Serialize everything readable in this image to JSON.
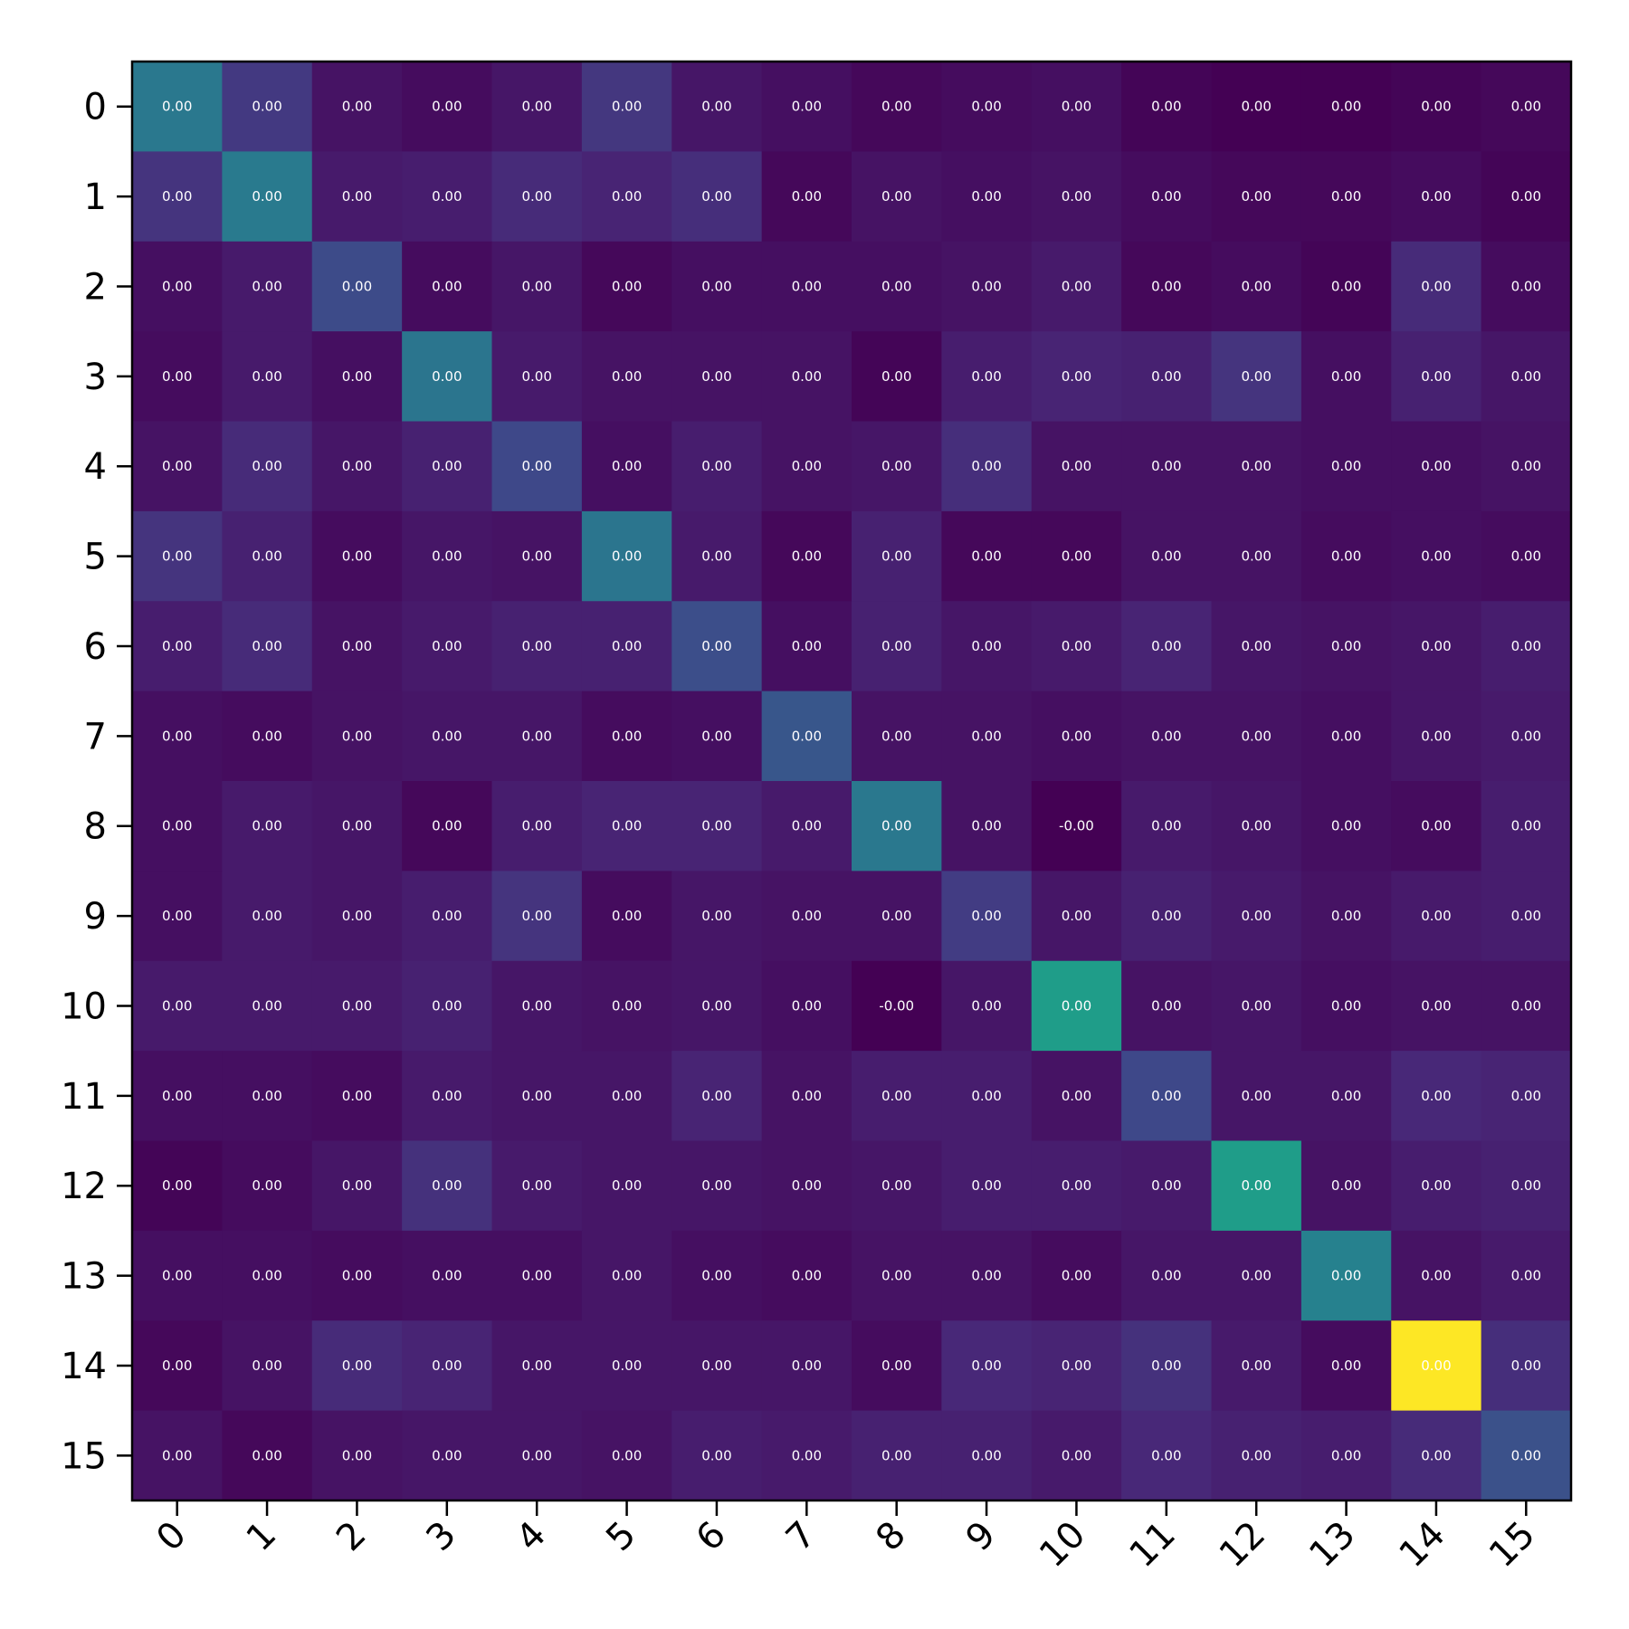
{
  "chart_data": {
    "type": "heatmap",
    "title": "",
    "xlabel": "",
    "ylabel": "",
    "colormap": "viridis",
    "grid": false,
    "legend": "none",
    "x_categories": [
      "0",
      "1",
      "2",
      "3",
      "4",
      "5",
      "6",
      "7",
      "8",
      "9",
      "10",
      "11",
      "12",
      "13",
      "14",
      "15"
    ],
    "y_categories": [
      "0",
      "1",
      "2",
      "3",
      "4",
      "5",
      "6",
      "7",
      "8",
      "9",
      "10",
      "11",
      "12",
      "13",
      "14",
      "15"
    ],
    "intensity": [
      [
        0.4,
        0.17,
        0.05,
        0.03,
        0.06,
        0.16,
        0.06,
        0.04,
        0.02,
        0.03,
        0.04,
        0.01,
        0.0,
        0.0,
        0.01,
        0.02
      ],
      [
        0.15,
        0.41,
        0.07,
        0.08,
        0.12,
        0.1,
        0.13,
        0.02,
        0.05,
        0.04,
        0.05,
        0.03,
        0.02,
        0.02,
        0.03,
        0.01
      ],
      [
        0.04,
        0.07,
        0.23,
        0.03,
        0.06,
        0.02,
        0.04,
        0.04,
        0.04,
        0.05,
        0.07,
        0.02,
        0.03,
        0.01,
        0.12,
        0.03
      ],
      [
        0.03,
        0.07,
        0.04,
        0.39,
        0.07,
        0.05,
        0.05,
        0.05,
        0.01,
        0.08,
        0.1,
        0.09,
        0.15,
        0.04,
        0.09,
        0.06
      ],
      [
        0.05,
        0.12,
        0.06,
        0.09,
        0.22,
        0.04,
        0.08,
        0.05,
        0.06,
        0.13,
        0.05,
        0.05,
        0.05,
        0.04,
        0.04,
        0.05
      ],
      [
        0.15,
        0.09,
        0.03,
        0.06,
        0.05,
        0.39,
        0.07,
        0.02,
        0.09,
        0.02,
        0.02,
        0.05,
        0.05,
        0.03,
        0.04,
        0.03
      ],
      [
        0.08,
        0.12,
        0.05,
        0.07,
        0.09,
        0.09,
        0.24,
        0.04,
        0.09,
        0.06,
        0.07,
        0.1,
        0.06,
        0.05,
        0.06,
        0.08
      ],
      [
        0.04,
        0.03,
        0.05,
        0.06,
        0.06,
        0.03,
        0.04,
        0.27,
        0.05,
        0.05,
        0.04,
        0.05,
        0.05,
        0.04,
        0.06,
        0.07
      ],
      [
        0.04,
        0.07,
        0.06,
        0.02,
        0.08,
        0.1,
        0.1,
        0.07,
        0.4,
        0.05,
        0.0,
        0.07,
        0.06,
        0.04,
        0.03,
        0.08
      ],
      [
        0.04,
        0.07,
        0.06,
        0.08,
        0.15,
        0.03,
        0.06,
        0.05,
        0.05,
        0.18,
        0.06,
        0.09,
        0.07,
        0.05,
        0.07,
        0.08
      ],
      [
        0.07,
        0.07,
        0.07,
        0.09,
        0.06,
        0.05,
        0.06,
        0.04,
        0.0,
        0.06,
        0.55,
        0.05,
        0.06,
        0.04,
        0.05,
        0.05
      ],
      [
        0.04,
        0.04,
        0.03,
        0.07,
        0.06,
        0.06,
        0.1,
        0.05,
        0.08,
        0.08,
        0.05,
        0.22,
        0.06,
        0.06,
        0.11,
        0.1
      ],
      [
        0.01,
        0.03,
        0.06,
        0.14,
        0.07,
        0.06,
        0.06,
        0.05,
        0.06,
        0.08,
        0.08,
        0.07,
        0.55,
        0.05,
        0.08,
        0.09
      ],
      [
        0.04,
        0.04,
        0.03,
        0.04,
        0.04,
        0.06,
        0.04,
        0.03,
        0.05,
        0.05,
        0.03,
        0.06,
        0.06,
        0.44,
        0.05,
        0.07
      ],
      [
        0.02,
        0.05,
        0.12,
        0.1,
        0.06,
        0.06,
        0.06,
        0.06,
        0.03,
        0.11,
        0.1,
        0.14,
        0.07,
        0.03,
        1.0,
        0.13
      ],
      [
        0.05,
        0.02,
        0.05,
        0.06,
        0.06,
        0.05,
        0.08,
        0.07,
        0.09,
        0.09,
        0.07,
        0.11,
        0.09,
        0.08,
        0.12,
        0.25
      ]
    ],
    "cell_labels": [
      [
        "0.00",
        "0.00",
        "0.00",
        "0.00",
        "0.00",
        "0.00",
        "0.00",
        "0.00",
        "0.00",
        "0.00",
        "0.00",
        "0.00",
        "0.00",
        "0.00",
        "0.00",
        "0.00"
      ],
      [
        "0.00",
        "0.00",
        "0.00",
        "0.00",
        "0.00",
        "0.00",
        "0.00",
        "0.00",
        "0.00",
        "0.00",
        "0.00",
        "0.00",
        "0.00",
        "0.00",
        "0.00",
        "0.00"
      ],
      [
        "0.00",
        "0.00",
        "0.00",
        "0.00",
        "0.00",
        "0.00",
        "0.00",
        "0.00",
        "0.00",
        "0.00",
        "0.00",
        "0.00",
        "0.00",
        "0.00",
        "0.00",
        "0.00"
      ],
      [
        "0.00",
        "0.00",
        "0.00",
        "0.00",
        "0.00",
        "0.00",
        "0.00",
        "0.00",
        "0.00",
        "0.00",
        "0.00",
        "0.00",
        "0.00",
        "0.00",
        "0.00",
        "0.00"
      ],
      [
        "0.00",
        "0.00",
        "0.00",
        "0.00",
        "0.00",
        "0.00",
        "0.00",
        "0.00",
        "0.00",
        "0.00",
        "0.00",
        "0.00",
        "0.00",
        "0.00",
        "0.00",
        "0.00"
      ],
      [
        "0.00",
        "0.00",
        "0.00",
        "0.00",
        "0.00",
        "0.00",
        "0.00",
        "0.00",
        "0.00",
        "0.00",
        "0.00",
        "0.00",
        "0.00",
        "0.00",
        "0.00",
        "0.00"
      ],
      [
        "0.00",
        "0.00",
        "0.00",
        "0.00",
        "0.00",
        "0.00",
        "0.00",
        "0.00",
        "0.00",
        "0.00",
        "0.00",
        "0.00",
        "0.00",
        "0.00",
        "0.00",
        "0.00"
      ],
      [
        "0.00",
        "0.00",
        "0.00",
        "0.00",
        "0.00",
        "0.00",
        "0.00",
        "0.00",
        "0.00",
        "0.00",
        "0.00",
        "0.00",
        "0.00",
        "0.00",
        "0.00",
        "0.00"
      ],
      [
        "0.00",
        "0.00",
        "0.00",
        "0.00",
        "0.00",
        "0.00",
        "0.00",
        "0.00",
        "0.00",
        "0.00",
        "-0.00",
        "0.00",
        "0.00",
        "0.00",
        "0.00",
        "0.00"
      ],
      [
        "0.00",
        "0.00",
        "0.00",
        "0.00",
        "0.00",
        "0.00",
        "0.00",
        "0.00",
        "0.00",
        "0.00",
        "0.00",
        "0.00",
        "0.00",
        "0.00",
        "0.00",
        "0.00"
      ],
      [
        "0.00",
        "0.00",
        "0.00",
        "0.00",
        "0.00",
        "0.00",
        "0.00",
        "0.00",
        "-0.00",
        "0.00",
        "0.00",
        "0.00",
        "0.00",
        "0.00",
        "0.00",
        "0.00"
      ],
      [
        "0.00",
        "0.00",
        "0.00",
        "0.00",
        "0.00",
        "0.00",
        "0.00",
        "0.00",
        "0.00",
        "0.00",
        "0.00",
        "0.00",
        "0.00",
        "0.00",
        "0.00",
        "0.00"
      ],
      [
        "0.00",
        "0.00",
        "0.00",
        "0.00",
        "0.00",
        "0.00",
        "0.00",
        "0.00",
        "0.00",
        "0.00",
        "0.00",
        "0.00",
        "0.00",
        "0.00",
        "0.00",
        "0.00"
      ],
      [
        "0.00",
        "0.00",
        "0.00",
        "0.00",
        "0.00",
        "0.00",
        "0.00",
        "0.00",
        "0.00",
        "0.00",
        "0.00",
        "0.00",
        "0.00",
        "0.00",
        "0.00",
        "0.00"
      ],
      [
        "0.00",
        "0.00",
        "0.00",
        "0.00",
        "0.00",
        "0.00",
        "0.00",
        "0.00",
        "0.00",
        "0.00",
        "0.00",
        "0.00",
        "0.00",
        "0.00",
        "0.00",
        "0.00"
      ],
      [
        "0.00",
        "0.00",
        "0.00",
        "0.00",
        "0.00",
        "0.00",
        "0.00",
        "0.00",
        "0.00",
        "0.00",
        "0.00",
        "0.00",
        "0.00",
        "0.00",
        "0.00",
        "0.00"
      ]
    ]
  }
}
